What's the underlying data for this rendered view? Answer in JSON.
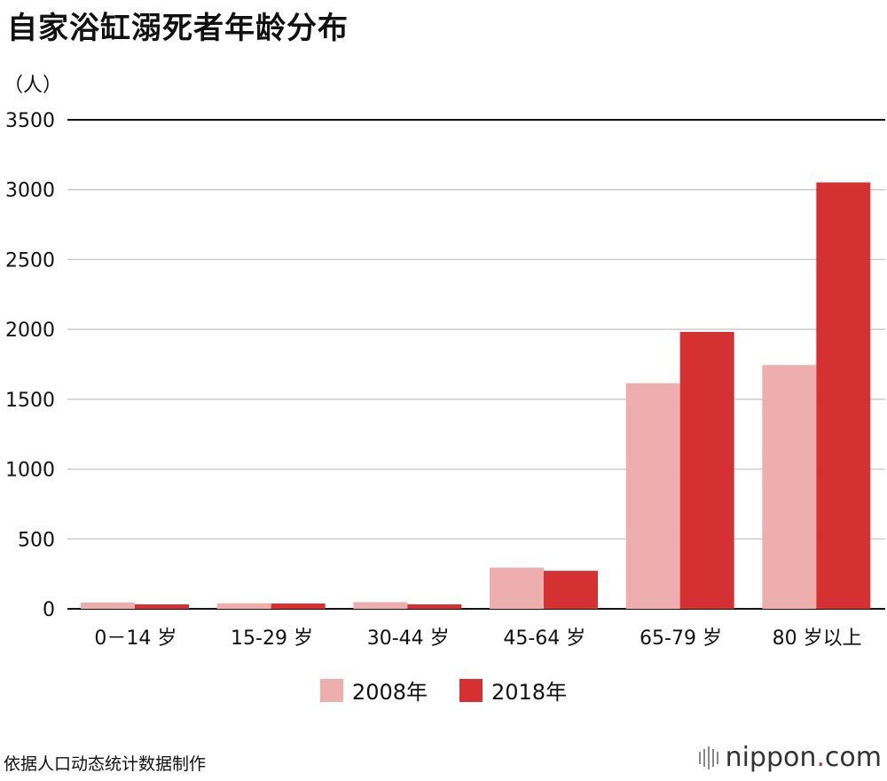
{
  "title": "自家浴缸溺死者年龄分布",
  "unit_label": "（人）",
  "source_note": "依据人口动态统计数据制作",
  "brand": {
    "name": "nippon",
    "dot": ".",
    "suffix": "com"
  },
  "colors": {
    "series_2008": "#eeaeae",
    "series_2018": "#d53132",
    "grid": "#cccccc",
    "axis": "#111111"
  },
  "chart_data": {
    "type": "bar",
    "title": "自家浴缸溺死者年龄分布",
    "ylabel": "（人）",
    "xlabel": "",
    "ylim": [
      0,
      3500
    ],
    "yticks": [
      0,
      500,
      1000,
      1500,
      2000,
      2500,
      3000,
      3500
    ],
    "grid": true,
    "legend": "bottom",
    "categories": [
      "0－14 岁",
      "15-29 岁",
      "30-44 岁",
      "45-64 岁",
      "65-79 岁",
      "80 岁以上"
    ],
    "series": [
      {
        "name": "2008年",
        "color": "#eeaeae",
        "values": [
          45,
          40,
          48,
          295,
          1615,
          1745
        ]
      },
      {
        "name": "2018年",
        "color": "#d53132",
        "values": [
          32,
          38,
          32,
          272,
          1982,
          3052
        ]
      }
    ]
  }
}
